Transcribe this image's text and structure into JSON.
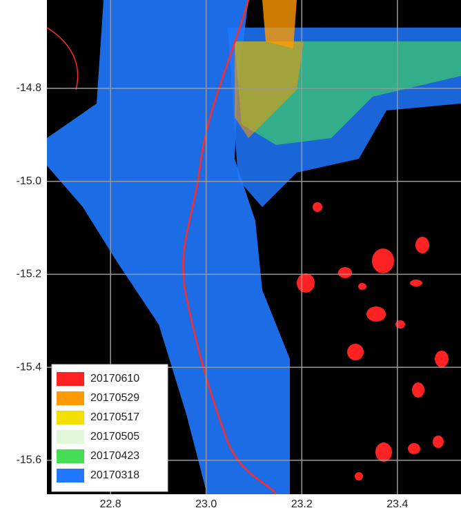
{
  "map": {
    "xlim": [
      22.667,
      23.533
    ],
    "ylim": [
      -15.673,
      -14.61
    ],
    "xticks": [
      22.8,
      {
        "value": 23.0,
        "label": "23.0"
      },
      23.2,
      23.4
    ],
    "yticks": [
      -14.8,
      {
        "value": -15.0,
        "label": "-15.0"
      },
      -15.2,
      -15.4,
      -15.6
    ],
    "grid": true,
    "legend": [
      {
        "label": "20170610",
        "color": "#ff2222"
      },
      {
        "label": "20170529",
        "color": "#ff9a00"
      },
      {
        "label": "20170517",
        "color": "#f4e000"
      },
      {
        "label": "20170505",
        "color": "#e2f8da"
      },
      {
        "label": "20170423",
        "color": "#44dd55"
      },
      {
        "label": "20170318",
        "color": "#1f78ff"
      }
    ]
  }
}
